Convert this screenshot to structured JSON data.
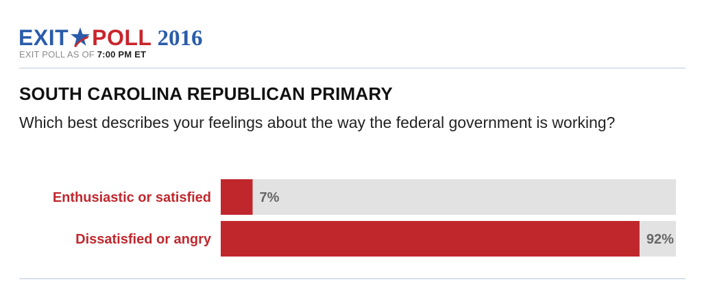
{
  "header": {
    "logo_exit": "EXIT",
    "logo_poll": "POLL",
    "logo_year": "2016",
    "asof_prefix": "EXIT POLL AS OF ",
    "asof_time": "7:00 PM ET"
  },
  "colors": {
    "brand_blue": "#2a5caa",
    "brand_red": "#c9252c",
    "bar_fill": "#c0272d",
    "bar_track": "#e2e2e2"
  },
  "chart_data": {
    "type": "bar",
    "title": "SOUTH CAROLINA REPUBLICAN PRIMARY",
    "subtitle": "Which best describes your feelings about the way the federal government is working?",
    "categories": [
      "Enthusiastic or satisfied",
      "Dissatisfied or angry"
    ],
    "values": [
      7,
      92
    ],
    "value_labels": [
      "7%",
      "92%"
    ],
    "ylim": [
      0,
      100
    ]
  }
}
